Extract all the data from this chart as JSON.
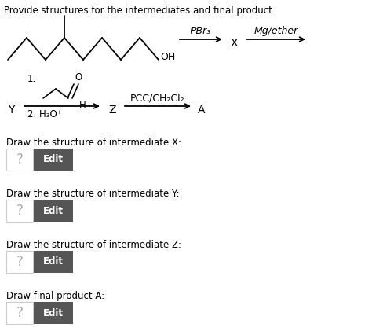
{
  "title": "Provide structures for the intermediates and final product.",
  "title_fontsize": 8.5,
  "background_color": "#ffffff",
  "text_color": "#000000",
  "sections": [
    {
      "label": "Draw the structure of intermediate X:"
    },
    {
      "label": "Draw the structure of intermediate Y:"
    },
    {
      "label": "Draw the structure of intermediate Z:"
    },
    {
      "label": "Draw final product A:"
    }
  ],
  "button_box_color": "#555555",
  "button_text_color": "#ffffff",
  "question_mark_color": "#aaaaaa",
  "border_color": "#cccccc",
  "mol_color": "#000000",
  "arrow_color": "#000000"
}
